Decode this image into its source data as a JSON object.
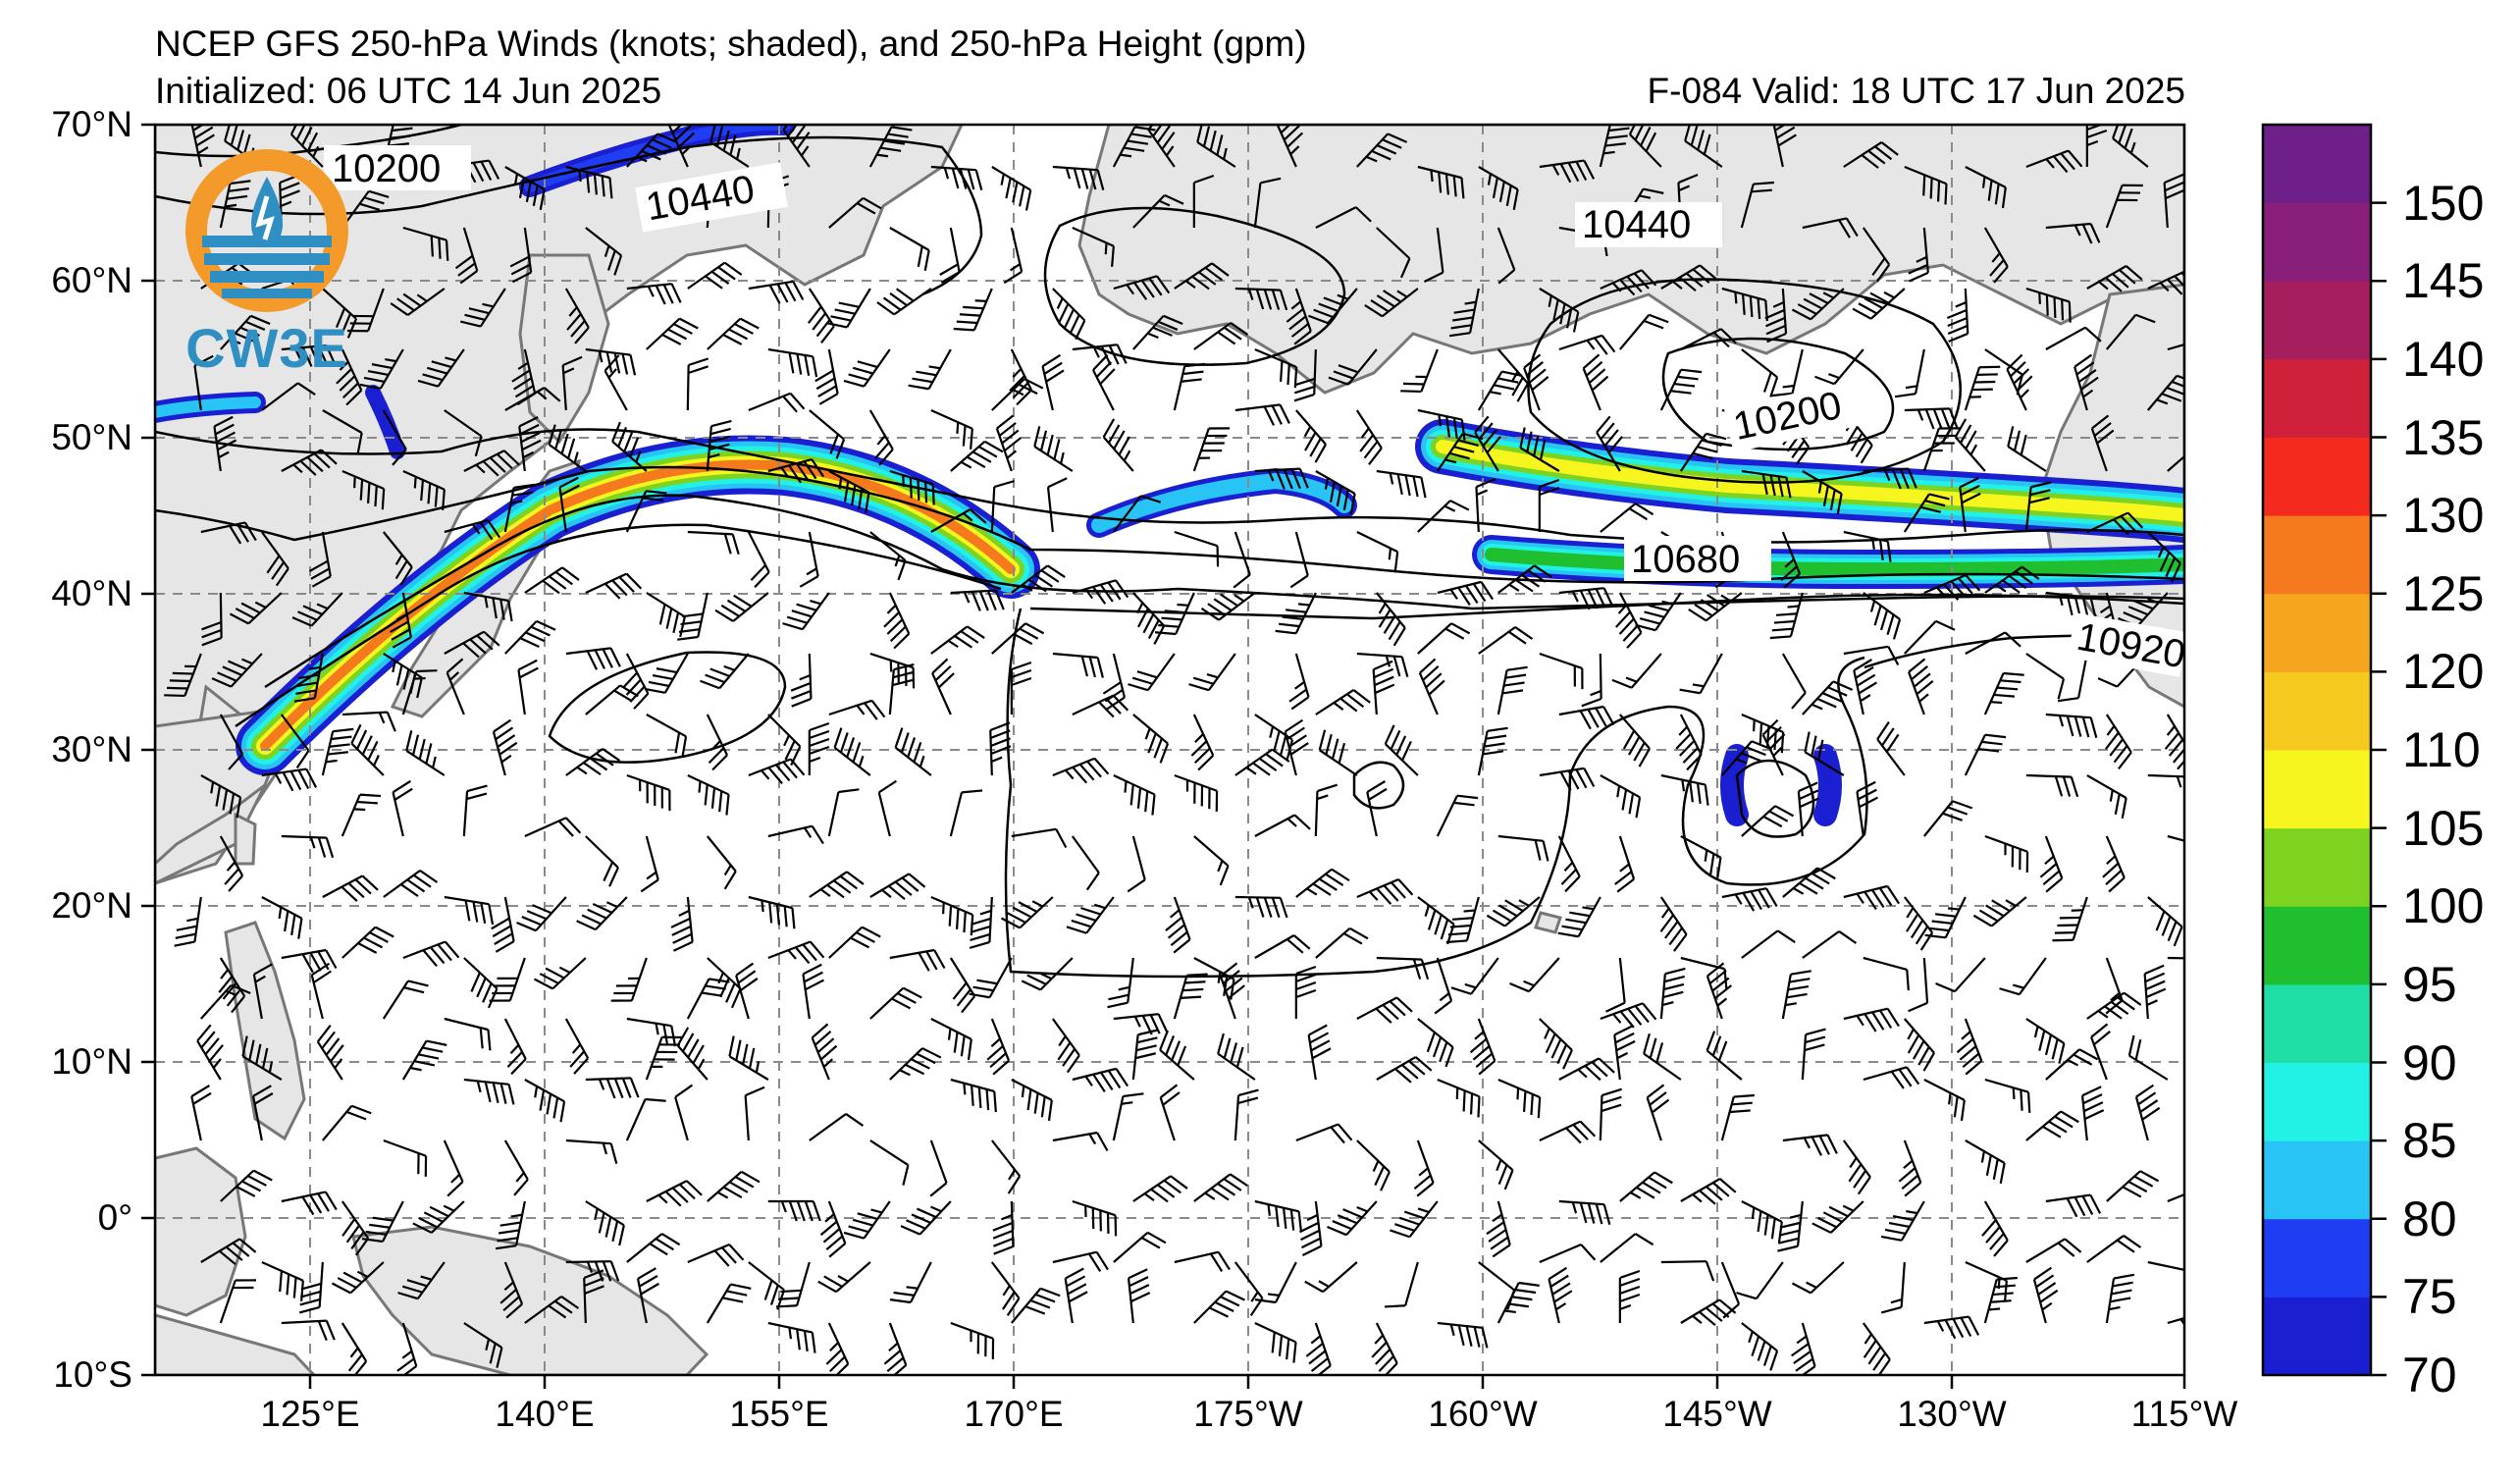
{
  "header": {
    "title": "NCEP GFS 250-hPa Winds (knots; shaded), and 250-hPa Height (gpm)",
    "initialized": "Initialized: 06 UTC 14 Jun 2025",
    "valid": "F-084  Valid: 18 UTC 17 Jun 2025"
  },
  "logo": {
    "text": "CW3E",
    "color_orange": "#f39a2b",
    "color_blue": "#2f8fc2"
  },
  "axes": {
    "lat_labels": [
      "70°N",
      "60°N",
      "50°N",
      "40°N",
      "30°N",
      "20°N",
      "10°N",
      "0°",
      "10°S"
    ],
    "lon_labels": [
      "125°E",
      "140°E",
      "155°E",
      "170°E",
      "175°W",
      "160°W",
      "145°W",
      "130°W",
      "115°W"
    ]
  },
  "contour_labels": [
    "10200",
    "10440",
    "10440",
    "10200",
    "10680",
    "10920"
  ],
  "colorbar": {
    "labels": [
      "70",
      "75",
      "80",
      "85",
      "90",
      "95",
      "100",
      "105",
      "110",
      "120",
      "125",
      "130",
      "135",
      "140",
      "145",
      "150"
    ],
    "colors": [
      "#1a1fd1",
      "#1f3df2",
      "#27c4f5",
      "#22f2e6",
      "#1fdfa6",
      "#1fbf2f",
      "#7ed321",
      "#f6f61e",
      "#f6c91e",
      "#f6a51e",
      "#f57a1e",
      "#f52a1e",
      "#d1203a",
      "#a61e5e",
      "#8a1f7a",
      "#6e1f8a"
    ]
  },
  "map_colors": {
    "land": "#e6e6e6",
    "ocean": "#ffffff",
    "coast": "#777777",
    "grid": "#8a8a8a"
  }
}
